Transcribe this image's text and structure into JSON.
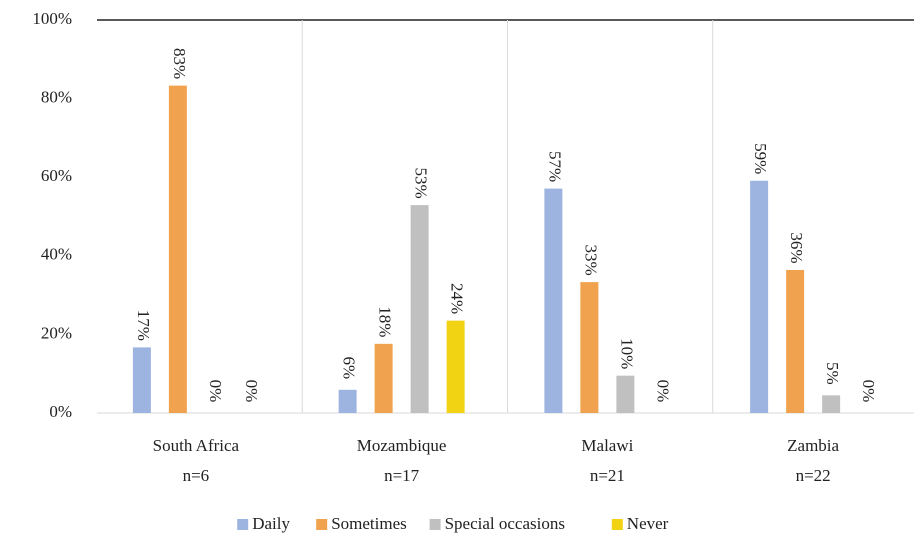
{
  "chart_data": {
    "type": "bar",
    "categories": [
      [
        "South Africa",
        "n=6"
      ],
      [
        "Mozambique",
        "n=17"
      ],
      [
        "Malawi",
        "n=21"
      ],
      [
        "Zambia",
        "n=22"
      ]
    ],
    "series": [
      {
        "name": "Daily",
        "color": "#9db4e0",
        "values": [
          16.7,
          5.9,
          57.1,
          59.1
        ],
        "value_labels": [
          "17%",
          "6%",
          "57%",
          "59%"
        ]
      },
      {
        "name": "Sometimes",
        "color": "#f0a24e",
        "values": [
          83.3,
          17.6,
          33.3,
          36.4
        ],
        "value_labels": [
          "83%",
          "18%",
          "33%",
          "36%"
        ]
      },
      {
        "name": "Special occasions",
        "color": "#c0c0c0",
        "values": [
          0,
          52.9,
          9.5,
          4.5
        ],
        "value_labels": [
          "0%",
          "53%",
          "10%",
          "5%"
        ]
      },
      {
        "name": "Never",
        "color": "#f2d313",
        "values": [
          0,
          23.5,
          0,
          0
        ],
        "value_labels": [
          "0%",
          "24%",
          "0%",
          "0%"
        ]
      }
    ],
    "ylim": [
      0,
      100
    ],
    "yticks": [
      {
        "value": 0,
        "label": "0%"
      },
      {
        "value": 20,
        "label": "20%"
      },
      {
        "value": 40,
        "label": "40%"
      },
      {
        "value": 60,
        "label": "60%"
      },
      {
        "value": 80,
        "label": "80%"
      },
      {
        "value": 100,
        "label": "100%"
      }
    ],
    "grid": false,
    "legend": "bottom"
  }
}
